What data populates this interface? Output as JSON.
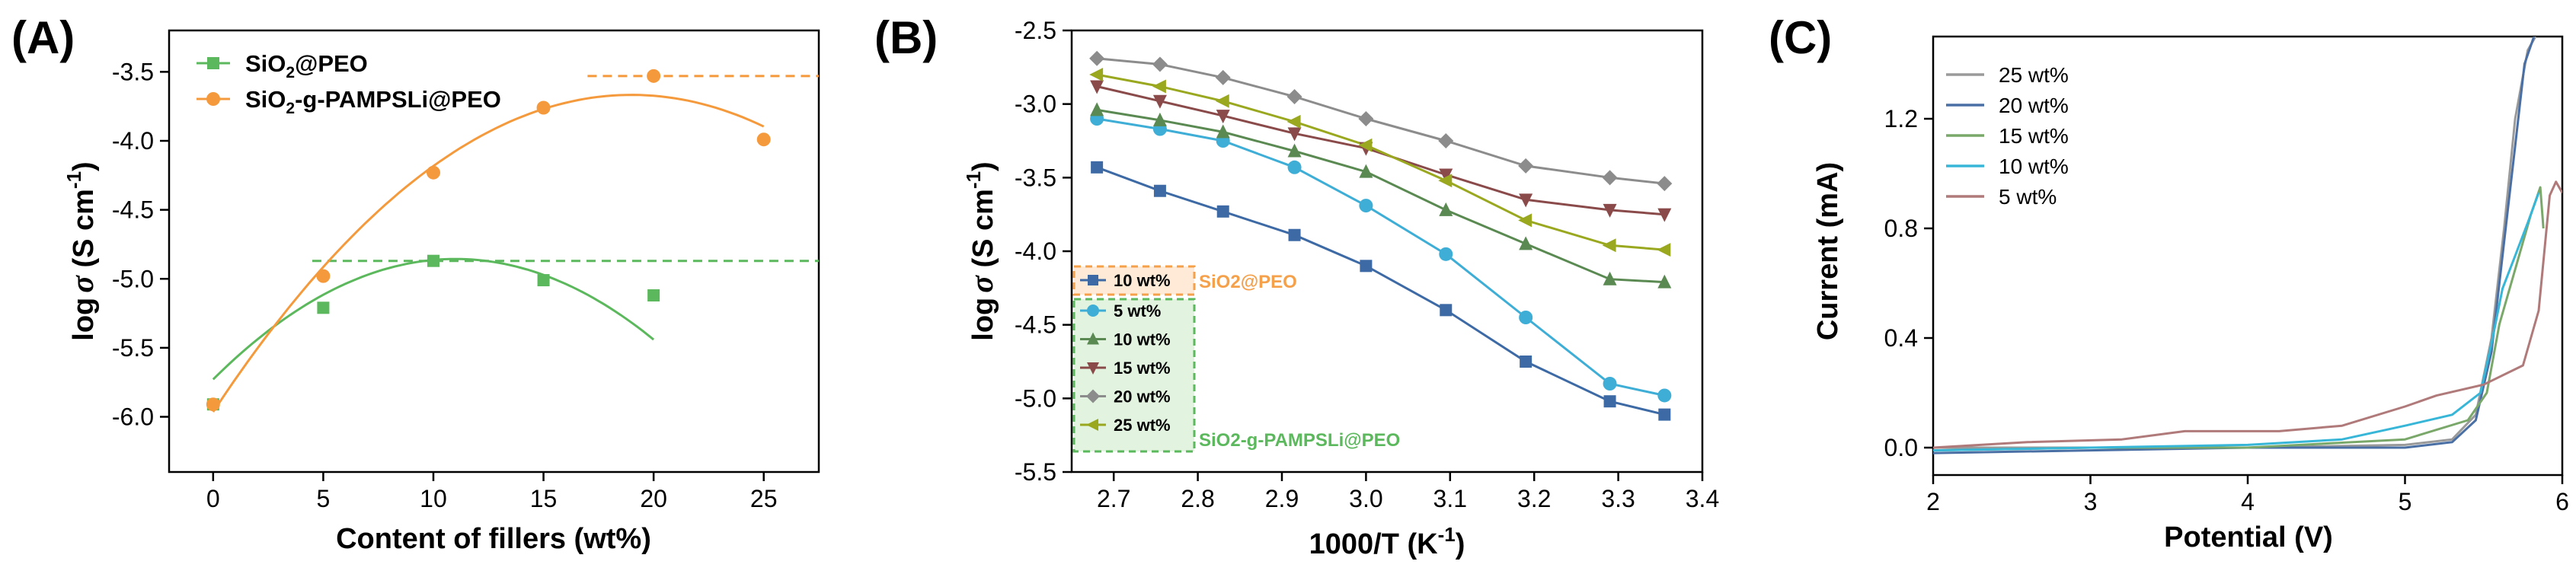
{
  "chart_data": [
    {
      "type": "scatter",
      "panel_label": "(A)",
      "xlabel": "Content of fillers (wt%)",
      "ylabel_main": "log",
      "ylabel_sigma": "σ",
      "ylabel_unit": " (S cm",
      "ylabel_exp": "-1",
      "ylabel_close": ")",
      "xlim": [
        -2,
        27.5
      ],
      "ylim": [
        -6.4,
        -3.2
      ],
      "xticks": [
        0,
        5,
        10,
        15,
        20,
        25
      ],
      "xtick_labels": [
        "0",
        "5",
        "10",
        "15",
        "20",
        "25"
      ],
      "yticks": [
        -6.0,
        -5.5,
        -5.0,
        -4.5,
        -4.0,
        -3.5
      ],
      "ytick_labels": [
        "-6.0",
        "-5.5",
        "-5.0",
        "-4.5",
        "-4.0",
        "-3.5"
      ],
      "legend_position": "top-left",
      "series": [
        {
          "name": "SiO2@PEO",
          "legend_parts": [
            "SiO",
            "2",
            "@PEO"
          ],
          "color": "#5cb85c",
          "marker": "square",
          "x": [
            0,
            5,
            10,
            15,
            20
          ],
          "y": [
            -5.91,
            -5.21,
            -4.87,
            -5.01,
            -5.12
          ],
          "fit_peak": 11,
          "reference_line": {
            "y": -4.87,
            "x_from": 4.5,
            "x_to": 27.5
          }
        },
        {
          "name": "SiO2-g-PAMPSLi@PEO",
          "legend_parts": [
            "SiO",
            "2",
            "-g-PAMPSLi@PEO"
          ],
          "color": "#f59a3c",
          "marker": "circle",
          "x": [
            0,
            5,
            10,
            15,
            20,
            25
          ],
          "y": [
            -5.91,
            -4.98,
            -4.23,
            -3.76,
            -3.53,
            -3.99
          ],
          "fit_peak": 19,
          "reference_line": {
            "y": -3.53,
            "x_from": 17,
            "x_to": 27.5
          }
        }
      ]
    },
    {
      "type": "line",
      "panel_label": "(B)",
      "xlabel": "1000/T (K",
      "xlabel_exp": "-1",
      "xlabel_close": ")",
      "ylabel_main": "log",
      "ylabel_sigma": "σ",
      "ylabel_unit": " (S cm",
      "ylabel_exp": "-1",
      "ylabel_close": ")",
      "xlim": [
        2.65,
        3.4
      ],
      "ylim": [
        -5.5,
        -2.5
      ],
      "xticks": [
        2.7,
        2.8,
        2.9,
        3.0,
        3.1,
        3.2,
        3.3,
        3.4
      ],
      "xtick_labels": [
        "2.7",
        "2.8",
        "2.9",
        "3.0",
        "3.1",
        "3.2",
        "3.3",
        "3.4"
      ],
      "yticks": [
        -5.5,
        -5.0,
        -4.5,
        -4.0,
        -3.5,
        -3.0,
        -2.5
      ],
      "ytick_labels": [
        "-5.5",
        "-5.0",
        "-4.5",
        "-4.0",
        "-3.5",
        "-3.0",
        "-2.5"
      ],
      "x": [
        2.68,
        2.755,
        2.83,
        2.915,
        3.0,
        3.095,
        3.19,
        3.29,
        3.355
      ],
      "legend_group_labels": [
        "SiO2@PEO",
        "SiO2-g-PAMPSLi@PEO"
      ],
      "legend_group_orange_color": "#f5a04a",
      "legend_group_green_color": "#5cb85c",
      "series": [
        {
          "name": "10 wt%",
          "group": "SiO2@PEO",
          "color": "#3d6aa5",
          "marker": "square",
          "y": [
            -3.43,
            -3.59,
            -3.73,
            -3.89,
            -4.1,
            -4.4,
            -4.75,
            -5.02,
            -5.11
          ]
        },
        {
          "name": "5 wt%",
          "group": "SiO2-g-PAMPSLi@PEO",
          "color": "#3eaed6",
          "marker": "circle",
          "y": [
            -3.1,
            -3.17,
            -3.25,
            -3.43,
            -3.69,
            -4.02,
            -4.45,
            -4.9,
            -4.98
          ]
        },
        {
          "name": "10 wt%",
          "group": "SiO2-g-PAMPSLi@PEO",
          "color": "#5a8a52",
          "marker": "triangle-up",
          "y": [
            -3.04,
            -3.11,
            -3.19,
            -3.32,
            -3.46,
            -3.72,
            -3.95,
            -4.19,
            -4.21
          ]
        },
        {
          "name": "15 wt%",
          "group": "SiO2-g-PAMPSLi@PEO",
          "color": "#8a4a4a",
          "marker": "triangle-down",
          "y": [
            -2.88,
            -2.98,
            -3.08,
            -3.2,
            -3.3,
            -3.48,
            -3.65,
            -3.72,
            -3.75
          ]
        },
        {
          "name": "20 wt%",
          "group": "SiO2-g-PAMPSLi@PEO",
          "color": "#8c8c8c",
          "marker": "diamond",
          "y": [
            -2.69,
            -2.73,
            -2.82,
            -2.95,
            -3.1,
            -3.25,
            -3.42,
            -3.5,
            -3.54
          ]
        },
        {
          "name": "25 wt%",
          "group": "SiO2-g-PAMPSLi@PEO",
          "color": "#9aa820",
          "marker": "triangle-left",
          "y": [
            -2.8,
            -2.88,
            -2.98,
            -3.12,
            -3.28,
            -3.52,
            -3.79,
            -3.96,
            -3.99
          ]
        }
      ]
    },
    {
      "type": "line",
      "panel_label": "(C)",
      "xlabel": "Potential (V)",
      "ylabel": "Current (mA)",
      "xlim": [
        2,
        6
      ],
      "ylim": [
        -0.1,
        1.5
      ],
      "xticks": [
        2,
        3,
        4,
        5,
        6
      ],
      "xtick_labels": [
        "2",
        "3",
        "4",
        "5",
        "6"
      ],
      "yticks": [
        0.0,
        0.4,
        0.8,
        1.2
      ],
      "ytick_labels": [
        "0.0",
        "0.4",
        "0.8",
        "1.2"
      ],
      "legend_position": "top-left",
      "series": [
        {
          "name": "25 wt%",
          "color": "#9a9a9a",
          "x": [
            2.0,
            3.0,
            4.0,
            5.0,
            5.3,
            5.45,
            5.55,
            5.63,
            5.7,
            5.78,
            5.83
          ],
          "y": [
            0.0,
            0.0,
            0.0,
            0.01,
            0.03,
            0.12,
            0.4,
            0.8,
            1.2,
            1.45,
            1.5
          ]
        },
        {
          "name": "20 wt%",
          "color": "#4a6fa5",
          "x": [
            2.0,
            3.0,
            4.0,
            5.0,
            5.3,
            5.45,
            5.55,
            5.63,
            5.7,
            5.76,
            5.82
          ],
          "y": [
            -0.02,
            -0.01,
            0.0,
            0.0,
            0.02,
            0.1,
            0.35,
            0.75,
            1.1,
            1.4,
            1.5
          ]
        },
        {
          "name": "15 wt%",
          "color": "#7aa86a",
          "x": [
            2.0,
            3.0,
            4.0,
            5.0,
            5.4,
            5.52,
            5.6,
            5.7,
            5.8,
            5.86,
            5.88
          ],
          "y": [
            -0.01,
            0.0,
            0.0,
            0.03,
            0.1,
            0.2,
            0.45,
            0.65,
            0.85,
            0.95,
            0.8
          ]
        },
        {
          "name": "10 wt%",
          "color": "#38b6d8",
          "x": [
            2.0,
            3.0,
            4.0,
            4.6,
            5.0,
            5.3,
            5.48,
            5.55,
            5.62,
            5.7,
            5.78,
            5.85
          ],
          "y": [
            -0.01,
            0.0,
            0.01,
            0.03,
            0.08,
            0.12,
            0.2,
            0.38,
            0.58,
            0.7,
            0.82,
            0.93
          ]
        },
        {
          "name": "5 wt%",
          "color": "#b07a7a",
          "x": [
            2.0,
            2.6,
            3.2,
            3.6,
            3.8,
            4.2,
            4.6,
            5.0,
            5.2,
            5.5,
            5.75,
            5.85,
            5.92,
            5.96,
            6.0
          ],
          "y": [
            0.0,
            0.02,
            0.03,
            0.06,
            0.06,
            0.06,
            0.08,
            0.15,
            0.19,
            0.23,
            0.3,
            0.5,
            0.92,
            0.97,
            0.93
          ]
        }
      ]
    }
  ]
}
